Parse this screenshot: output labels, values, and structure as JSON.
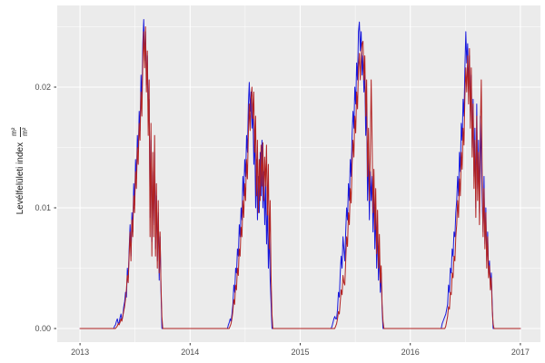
{
  "theme": {
    "background": "#FFFFFF",
    "panel_bg": "#EBEBEB",
    "grid_color": "#FFFFFF",
    "axis_text_color": "#4D4D4D",
    "tick_color": "#333333",
    "series_blue": "#1818DC",
    "series_red": "#B22222"
  },
  "chart_data": {
    "type": "line",
    "title": "",
    "xlabel": "",
    "ylabel": "Levélfelületi index m²/m²",
    "ylabel_text": "Levélfelületi index",
    "ylabel_frac_numerator": "m²",
    "ylabel_frac_denominator": "m²",
    "legend": "none",
    "grid": "ggplot gray panel, white major+minor gridlines",
    "xlim": [
      2012.793,
      2017.182
    ],
    "ylim": [
      -0.00113,
      0.02677
    ],
    "x_ticks": [
      2013,
      2014,
      2015,
      2016,
      2017
    ],
    "x_tick_labels": [
      "2013",
      "2014",
      "2015",
      "2016",
      "2017"
    ],
    "x_minor_ticks": [
      2013.5,
      2014.5,
      2015.5,
      2016.5
    ],
    "y_ticks": [
      0,
      0.01,
      0.02
    ],
    "y_tick_labels": [
      "0.00",
      "0.01",
      "0.02"
    ],
    "y_minor_ticks": [
      0.005,
      0.015,
      0.025
    ],
    "sampling_note": "two daily LAI series, ~3-day sampling (step 0.008264 yr); zero outside growing seasons",
    "series": [
      {
        "name": "blue",
        "color": "#1818DC",
        "segments": [
          {
            "start": 2013.0,
            "step": 0.008264,
            "values": [
              0
            ]
          },
          {
            "start": 2013.306,
            "step": 0.008264,
            "values": [
              0,
              0.0002,
              0.0003,
              0.0006,
              0.0008,
              0.0004,
              0.0005,
              0.0009,
              0.0012,
              0.0007,
              0.001,
              0.0018,
              0.0022,
              0.003,
              0.0026,
              0.005,
              0.0042,
              0.0066,
              0.0086,
              0.006,
              0.0096,
              0.008,
              0.012,
              0.0102,
              0.014,
              0.0124,
              0.016,
              0.0146,
              0.018,
              0.0164,
              0.021,
              0.019,
              0.0236,
              0.0256,
              0.0222,
              0.0246,
              0.0202,
              0.0226,
              0.0174,
              0.019,
              0.0092,
              0.0156,
              0.0072,
              0.013,
              0.0086,
              0.0146,
              0.0066,
              0.011,
              0.0056,
              0.0096,
              0.004,
              0.0076,
              0.003,
              0
            ]
          },
          {
            "start": 2014.339,
            "step": 0.008264,
            "values": [
              0,
              0.0003,
              0.0005,
              0.0008,
              0.0006,
              0.0012,
              0.002,
              0.0036,
              0.003,
              0.005,
              0.0046,
              0.0066,
              0.006,
              0.0086,
              0.0076,
              0.01,
              0.009,
              0.0126,
              0.011,
              0.014,
              0.0126,
              0.016,
              0.0146,
              0.0186,
              0.0204,
              0.018,
              0.0196,
              0.0166,
              0.018,
              0.0136,
              0.016,
              0.01,
              0.014,
              0.009,
              0.0126,
              0.0096,
              0.0146,
              0.011,
              0.0156,
              0.01,
              0.013,
              0.0086,
              0.012,
              0.007,
              0.01,
              0.005,
              0.008,
              0.004,
              0.002,
              0
            ]
          },
          {
            "start": 2015.281,
            "step": 0.008264,
            "values": [
              0,
              0.0002,
              0.0005,
              0.0008,
              0.001,
              0.0008,
              0.0008,
              0.0016,
              0.003,
              0.0026,
              0.0046,
              0.006,
              0.005,
              0.0076,
              0.0066,
              0.0056,
              0.008,
              0.01,
              0.009,
              0.012,
              0.0106,
              0.014,
              0.0126,
              0.016,
              0.018,
              0.0166,
              0.02,
              0.0186,
              0.022,
              0.0206,
              0.0246,
              0.0254,
              0.023,
              0.0246,
              0.021,
              0.0226,
              0.0196,
              0.021,
              0.016,
              0.0186,
              0.0106,
              0.0146,
              0.009,
              0.013,
              0.0106,
              0.0126,
              0.008,
              0.0116,
              0.0066,
              0.01,
              0.005,
              0.0086,
              0.004,
              0.0066,
              0.003,
              0.0046,
              0.0016,
              0
            ]
          },
          {
            "start": 2016.281,
            "step": 0.008264,
            "values": [
              0,
              0.0004,
              0.0006,
              0.0008,
              0.001,
              0.0012,
              0.0016,
              0.002,
              0.0036,
              0.003,
              0.005,
              0.0046,
              0.0066,
              0.006,
              0.008,
              0.0076,
              0.0096,
              0.0106,
              0.0126,
              0.011,
              0.0146,
              0.013,
              0.017,
              0.0156,
              0.019,
              0.0176,
              0.0216,
              0.0246,
              0.022,
              0.0236,
              0.02,
              0.0226,
              0.018,
              0.021,
              0.015,
              0.019,
              0.0126,
              0.0166,
              0.01,
              0.0186,
              0.0116,
              0.0156,
              0.0096,
              0.0176,
              0.0136,
              0.0106,
              0.008,
              0.0126,
              0.007,
              0.01,
              0.0056,
              0.008,
              0.0046,
              0.0056,
              0.0036,
              0.0046,
              0.002,
              0
            ]
          },
          {
            "start": 2017.0,
            "step": 0.008264,
            "values": [
              0
            ]
          }
        ]
      },
      {
        "name": "red",
        "color": "#B22222",
        "segments": [
          {
            "start": 2013.0,
            "step": 0.008264,
            "values": [
              0
            ]
          },
          {
            "start": 2013.322,
            "step": 0.008264,
            "values": [
              0,
              0.0001,
              0.0002,
              0.0004,
              0.0003,
              0.0005,
              0.0008,
              0.0006,
              0.001,
              0.0014,
              0.0018,
              0.0024,
              0.0032,
              0.0044,
              0.0038,
              0.006,
              0.008,
              0.0056,
              0.009,
              0.0076,
              0.011,
              0.0096,
              0.013,
              0.0116,
              0.015,
              0.0136,
              0.017,
              0.0156,
              0.0196,
              0.0176,
              0.022,
              0.0246,
              0.0216,
              0.025,
              0.0196,
              0.023,
              0.016,
              0.0206,
              0.0076,
              0.017,
              0.006,
              0.0146,
              0.0076,
              0.016,
              0.006,
              0.012,
              0.005,
              0.0106,
              0.0046,
              0.008,
              0.0036,
              0.001,
              0
            ]
          },
          {
            "start": 2014.355,
            "step": 0.008264,
            "values": [
              0,
              0.0002,
              0.0004,
              0.0008,
              0.0014,
              0.0024,
              0.002,
              0.0036,
              0.0032,
              0.005,
              0.0044,
              0.0066,
              0.006,
              0.0084,
              0.0076,
              0.0106,
              0.0092,
              0.012,
              0.0106,
              0.014,
              0.0124,
              0.016,
              0.0186,
              0.0164,
              0.019,
              0.02,
              0.0174,
              0.0196,
              0.0146,
              0.0176,
              0.011,
              0.0156,
              0.0096,
              0.014,
              0.0106,
              0.0152,
              0.0118,
              0.0154,
              0.0106,
              0.0142,
              0.0118,
              0.0152,
              0.0094,
              0.0136,
              0.0066,
              0.0106,
              0.0044,
              0.0012,
              0
            ]
          },
          {
            "start": 2015.314,
            "step": 0.008264,
            "values": [
              0,
              0.0002,
              0.0004,
              0.0008,
              0.0014,
              0.0012,
              0.0022,
              0.0032,
              0.0028,
              0.0044,
              0.0038,
              0.0036,
              0.0056,
              0.0076,
              0.0068,
              0.0096,
              0.0086,
              0.0116,
              0.0104,
              0.0136,
              0.0156,
              0.0142,
              0.0176,
              0.0162,
              0.0196,
              0.0182,
              0.0216,
              0.0228,
              0.0206,
              0.0226,
              0.0236,
              0.0238,
              0.0206,
              0.0226,
              0.0176,
              0.0206,
              0.0126,
              0.0166,
              0.0106,
              0.0146,
              0.0206,
              0.0156,
              0.0096,
              0.0132,
              0.0082,
              0.0116,
              0.0062,
              0.0098,
              0.005,
              0.0078,
              0.0038,
              0.0052,
              0.002,
              0.0006,
              0
            ]
          },
          {
            "start": 2016.314,
            "step": 0.008264,
            "values": [
              0,
              0.0002,
              0.0006,
              0.001,
              0.0018,
              0.0016,
              0.003,
              0.0028,
              0.0046,
              0.0042,
              0.006,
              0.0056,
              0.0076,
              0.0086,
              0.0106,
              0.0092,
              0.0124,
              0.011,
              0.0146,
              0.0132,
              0.0166,
              0.0152,
              0.0192,
              0.0216,
              0.0196,
              0.0226,
              0.0186,
              0.0232,
              0.0166,
              0.0216,
              0.0142,
              0.0186,
              0.0116,
              0.0156,
              0.0092,
              0.0176,
              0.0106,
              0.0146,
              0.0086,
              0.0166,
              0.0206,
              0.0126,
              0.0076,
              0.0116,
              0.0066,
              0.0096,
              0.005,
              0.0076,
              0.0042,
              0.0052,
              0.0032,
              0.0042,
              0.0016,
              0.0004,
              0
            ]
          },
          {
            "start": 2017.0,
            "step": 0.008264,
            "values": [
              0
            ]
          }
        ]
      }
    ]
  }
}
